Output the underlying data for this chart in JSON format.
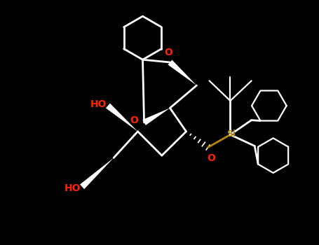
{
  "bg_color": "#000000",
  "bond_color": "#ffffff",
  "oxygen_color": "#ff2200",
  "silicon_color": "#b8860b",
  "figsize": [
    4.55,
    3.5
  ],
  "dpi": 100,
  "xlim": [
    -1,
    10
  ],
  "ylim": [
    -0.5,
    7.5
  ]
}
